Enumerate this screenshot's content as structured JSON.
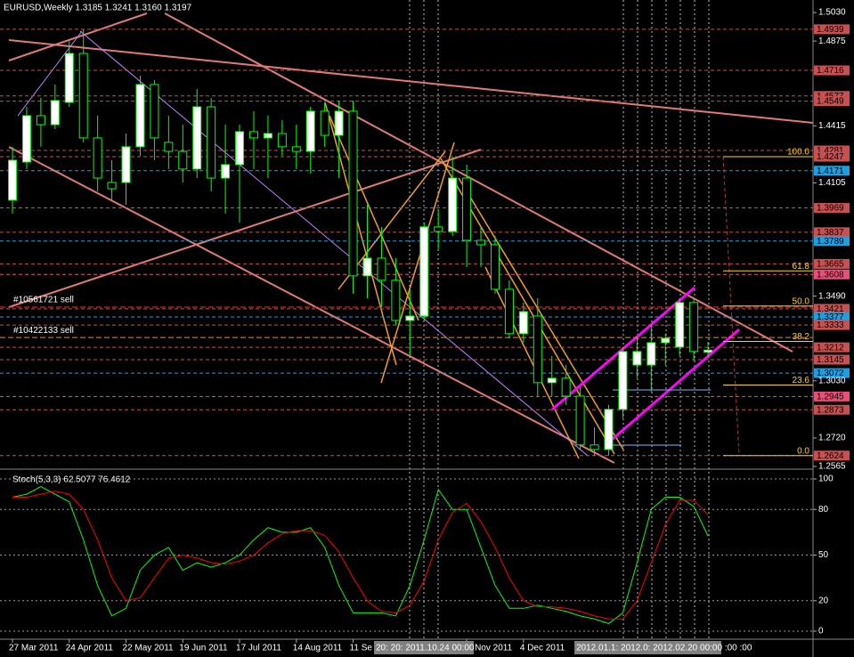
{
  "chart_data": [
    {
      "type": "candlestick",
      "title": "EURUSD,Weekly  1.3185 1.3241 1.3160 1.3197",
      "categories": [
        "27 Mar 2011",
        null,
        null,
        null,
        "24 Apr 2011",
        null,
        null,
        null,
        "22 May 2011",
        null,
        null,
        null,
        "19 Jun 2011",
        null,
        null,
        null,
        "17 Jul 2011",
        null,
        null,
        null,
        "14 Aug 2011",
        null,
        null,
        null,
        "11 Se",
        null,
        null,
        null,
        null,
        null,
        null,
        null,
        "Nov 2011",
        null,
        null,
        null,
        "4 Dec 2011",
        null,
        null,
        null,
        null,
        null,
        null,
        null,
        null,
        null,
        null,
        null,
        null,
        null
      ],
      "open": [
        1.4011,
        1.4218,
        1.447,
        1.4421,
        1.4542,
        1.4808,
        1.4349,
        1.4107,
        1.4107,
        1.4301,
        1.4639,
        1.4325,
        1.4276,
        1.418,
        1.4518,
        1.4131,
        1.4204,
        1.4383,
        1.4349,
        1.4373,
        1.4301,
        1.4276,
        1.4494,
        1.4363,
        1.4494,
        1.36,
        1.3696,
        1.3576,
        1.3358,
        1.3382,
        1.3866,
        1.3841,
        1.4131,
        1.3793,
        1.3769,
        1.3527,
        1.3286,
        1.3382,
        1.302,
        1.3044,
        1.2947,
        1.2682,
        1.2657,
        1.2875,
        1.3116,
        1.3116,
        1.3237,
        1.3213,
        1.3455,
        1.3185
      ],
      "high": [
        1.4301,
        1.4518,
        1.4566,
        1.4639,
        1.4881,
        1.4938,
        1.447,
        1.4228,
        1.4373,
        1.4687,
        1.4663,
        1.447,
        1.4421,
        1.4615,
        1.4566,
        1.4421,
        1.4421,
        1.4494,
        1.447,
        1.4446,
        1.4421,
        1.4518,
        1.4542,
        1.4552,
        1.4552,
        1.3986,
        1.3866,
        1.3696,
        1.3527,
        1.389,
        1.3962,
        1.4247,
        1.4204,
        1.3866,
        1.3817,
        1.3576,
        1.3455,
        1.3479,
        1.3165,
        1.3116,
        1.2996,
        1.2778,
        1.2899,
        1.3213,
        1.3261,
        1.3334,
        1.3286,
        1.3479,
        1.3479,
        1.3241
      ],
      "low": [
        1.3938,
        1.418,
        1.4301,
        1.4397,
        1.4518,
        1.4325,
        1.4059,
        1.4011,
        1.3986,
        1.4252,
        1.4228,
        1.418,
        1.4107,
        1.4131,
        1.4059,
        1.3938,
        1.389,
        1.418,
        1.4131,
        1.4252,
        1.418,
        1.4156,
        1.4301,
        1.4131,
        1.3503,
        1.3479,
        1.3431,
        1.3334,
        1.3165,
        1.3358,
        1.3745,
        1.3817,
        1.3648,
        1.3648,
        1.3503,
        1.3261,
        1.3237,
        1.2947,
        1.2947,
        1.2899,
        1.2657,
        1.2624,
        1.2624,
        1.2827,
        1.3044,
        1.2971,
        1.3116,
        1.3165,
        1.314,
        1.316
      ],
      "close": [
        1.4228,
        1.447,
        1.4421,
        1.4552,
        1.4808,
        1.4349,
        1.4131,
        1.4073,
        1.4301,
        1.4639,
        1.4349,
        1.4276,
        1.418,
        1.4518,
        1.4131,
        1.4204,
        1.4383,
        1.4349,
        1.4373,
        1.4301,
        1.4276,
        1.4494,
        1.4363,
        1.4494,
        1.36,
        1.3696,
        1.3576,
        1.3358,
        1.3382,
        1.3866,
        1.3841,
        1.4131,
        1.3793,
        1.3769,
        1.3527,
        1.3286,
        1.3406,
        1.302,
        1.3044,
        1.2947,
        1.2682,
        1.2657,
        1.2875,
        1.3189,
        1.3189,
        1.3237,
        1.3261,
        1.3455,
        1.3189,
        1.3197
      ],
      "bull_color": "#ffffff",
      "bear_color": "#000000",
      "outline_color": "#00ff00",
      "ylim": [
        1.256,
        1.5098
      ],
      "yticks": [
        {
          "value": 1.503,
          "label": "1.5030"
        },
        {
          "value": 1.4875,
          "label": "1.4875"
        },
        {
          "value": 1.4415,
          "label": "1.4415"
        },
        {
          "value": 1.4105,
          "label": "1.4105"
        },
        {
          "value": 1.349,
          "label": "1.3490"
        },
        {
          "value": 1.303,
          "label": "1.3030"
        },
        {
          "value": 1.272,
          "label": "1.2720"
        },
        {
          "value": 1.2565,
          "label": "1.2565"
        }
      ],
      "grid": false,
      "levels": [
        {
          "value": 1.4939,
          "color": "#c85050"
        },
        {
          "value": 1.4716,
          "color": "#c85050"
        },
        {
          "value": 1.4577,
          "color": "#c85050"
        },
        {
          "value": 1.4549,
          "color": "#c85050"
        },
        {
          "value": 1.4281,
          "color": "#c85050"
        },
        {
          "value": 1.4247,
          "color": "#c85050"
        },
        {
          "value": 1.4171,
          "color": "#1e9fe0"
        },
        {
          "value": 1.3969,
          "color": "#c85050"
        },
        {
          "value": 1.3837,
          "color": "#c85050"
        },
        {
          "value": 1.3789,
          "color": "#1e9fe0"
        },
        {
          "value": 1.3665,
          "color": "#c85050"
        },
        {
          "value": 1.3608,
          "color": "#e8507a"
        },
        {
          "value": 1.3421,
          "color": "#c85050"
        },
        {
          "value": 1.3377,
          "color": "#1e9fe0"
        },
        {
          "value": 1.3333,
          "color": "#c85050"
        },
        {
          "value": 1.3212,
          "color": "#c85050"
        },
        {
          "value": 1.3145,
          "color": "#c85050"
        },
        {
          "value": 1.3072,
          "color": "#1e9fe0"
        },
        {
          "value": 1.2945,
          "color": "#e8507a"
        },
        {
          "value": 1.2873,
          "color": "#c85050"
        },
        {
          "value": 1.2624,
          "color": "#c85050"
        }
      ],
      "fibonacci": [
        {
          "label": "100.0",
          "price": 1.4247
        },
        {
          "label": "61.8",
          "price": 1.3627
        },
        {
          "label": "50.0",
          "price": 1.3436
        },
        {
          "label": "38.2",
          "price": 1.3244
        },
        {
          "label": "23.6",
          "price": 1.3007
        },
        {
          "label": "0.0",
          "price": 1.2624
        }
      ],
      "fib_color": "#ffd700",
      "orders": [
        {
          "label": "#10561721 sell",
          "price": 1.343,
          "color": "#ff3030"
        },
        {
          "label": "#10422133 sell",
          "price": 1.3265,
          "color": "#ff8c00"
        }
      ],
      "crosshair_labels": [
        "20: 20: 2011.10.24 00:00",
        "2012.01.1: 2012.0: 2012.02.20 00:00 :00 :00"
      ]
    },
    {
      "type": "line",
      "title": "Stoch(5,3,3) 62.5077 76.4612",
      "series": [
        {
          "color": "#00ff00",
          "values": [
            88,
            90,
            95,
            90,
            85,
            60,
            30,
            10,
            15,
            40,
            50,
            55,
            40,
            45,
            42,
            45,
            50,
            60,
            68,
            65,
            65,
            68,
            55,
            30,
            12,
            12,
            12,
            10,
            30,
            60,
            93,
            80,
            80,
            55,
            30,
            15,
            15,
            17,
            15,
            13,
            10,
            8,
            5,
            12,
            45,
            80,
            88,
            88,
            82,
            62.5077
          ]
        },
        {
          "color": "#ff0000",
          "values": [
            88,
            88,
            90,
            92,
            90,
            80,
            60,
            35,
            20,
            22,
            35,
            48,
            50,
            48,
            45,
            44,
            46,
            50,
            58,
            64,
            66,
            66,
            63,
            52,
            35,
            20,
            13,
            12,
            17,
            33,
            60,
            78,
            84,
            72,
            55,
            35,
            20,
            16,
            16,
            15,
            13,
            10,
            8,
            8,
            20,
            45,
            70,
            86,
            86,
            76.4612
          ]
        }
      ],
      "ylim": [
        -5.3,
        104.7
      ],
      "yticks": [
        100,
        80,
        50,
        20,
        0
      ],
      "grid": true
    }
  ]
}
